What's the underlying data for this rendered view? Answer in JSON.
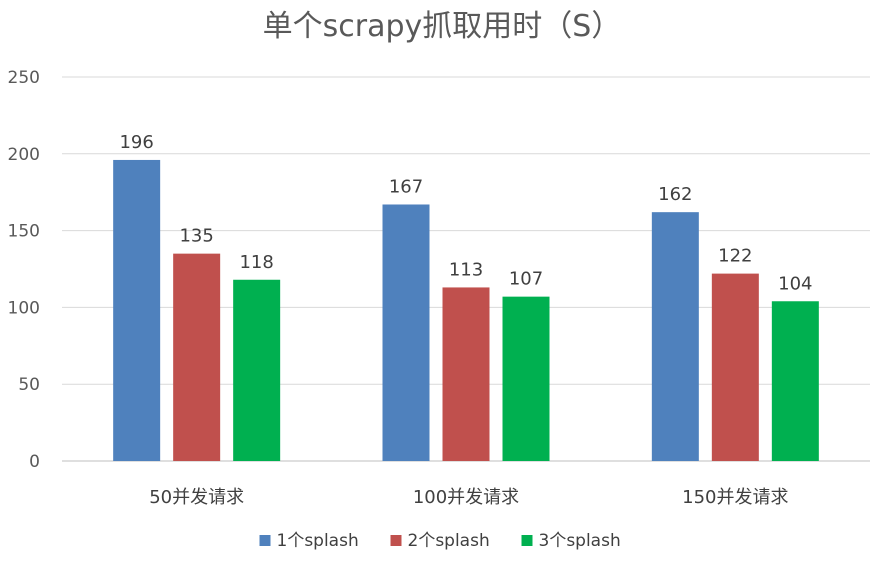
{
  "chart_data": {
    "type": "bar",
    "title": "单个scrapy抓取用时（S）",
    "categories": [
      "50并发请求",
      "100并发请求",
      "150并发请求"
    ],
    "series": [
      {
        "name": "1个splash",
        "color": "#4F81BD",
        "values": [
          196,
          167,
          162
        ]
      },
      {
        "name": "2个splash",
        "color": "#C0504D",
        "values": [
          135,
          113,
          122
        ]
      },
      {
        "name": "3个splash",
        "color": "#00B050",
        "values": [
          118,
          107,
          104
        ]
      }
    ],
    "ylim": [
      0,
      250
    ],
    "yticks": [
      0,
      50,
      100,
      150,
      200,
      250
    ],
    "grid": true,
    "legend": "bottom"
  }
}
